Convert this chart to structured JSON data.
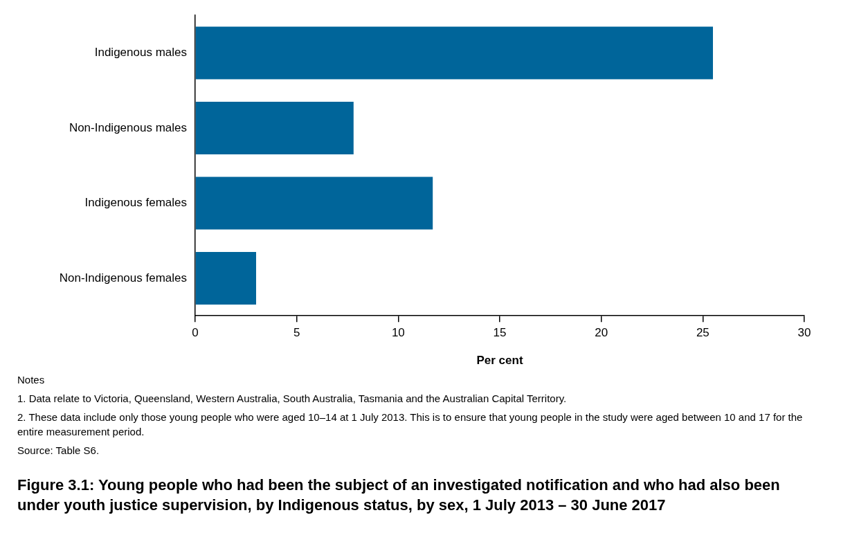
{
  "chart_data": {
    "type": "bar",
    "orientation": "horizontal",
    "title": "Figure 3.1: Young people who had been the subject of an investigated notification and who had also been under youth justice supervision, by Indigenous status, by sex, 1 July 2013 – 30 June 2017",
    "categories": [
      "Indigenous males",
      "Non-Indigenous males",
      "Indigenous females",
      "Non-Indigenous females"
    ],
    "values": [
      25.5,
      7.8,
      11.7,
      3.0
    ],
    "color": "#00659a",
    "xlim": [
      0,
      30
    ],
    "xticks": [
      0,
      5,
      10,
      15,
      20,
      25,
      30
    ],
    "xlabel": "Per cent",
    "grid": false,
    "legend": false,
    "annotations": [
      "Notes",
      "1. Data relate to Victoria, Queensland, Western Australia, South Australia, Tasmania and the Australian Capital Territory.",
      "2. These data include only those young people who were aged 10–14 at 1 July 2013. This is to ensure that young people in the study were aged between 10 and 17 for the entire measurement period.",
      "Source: Table S6."
    ]
  }
}
